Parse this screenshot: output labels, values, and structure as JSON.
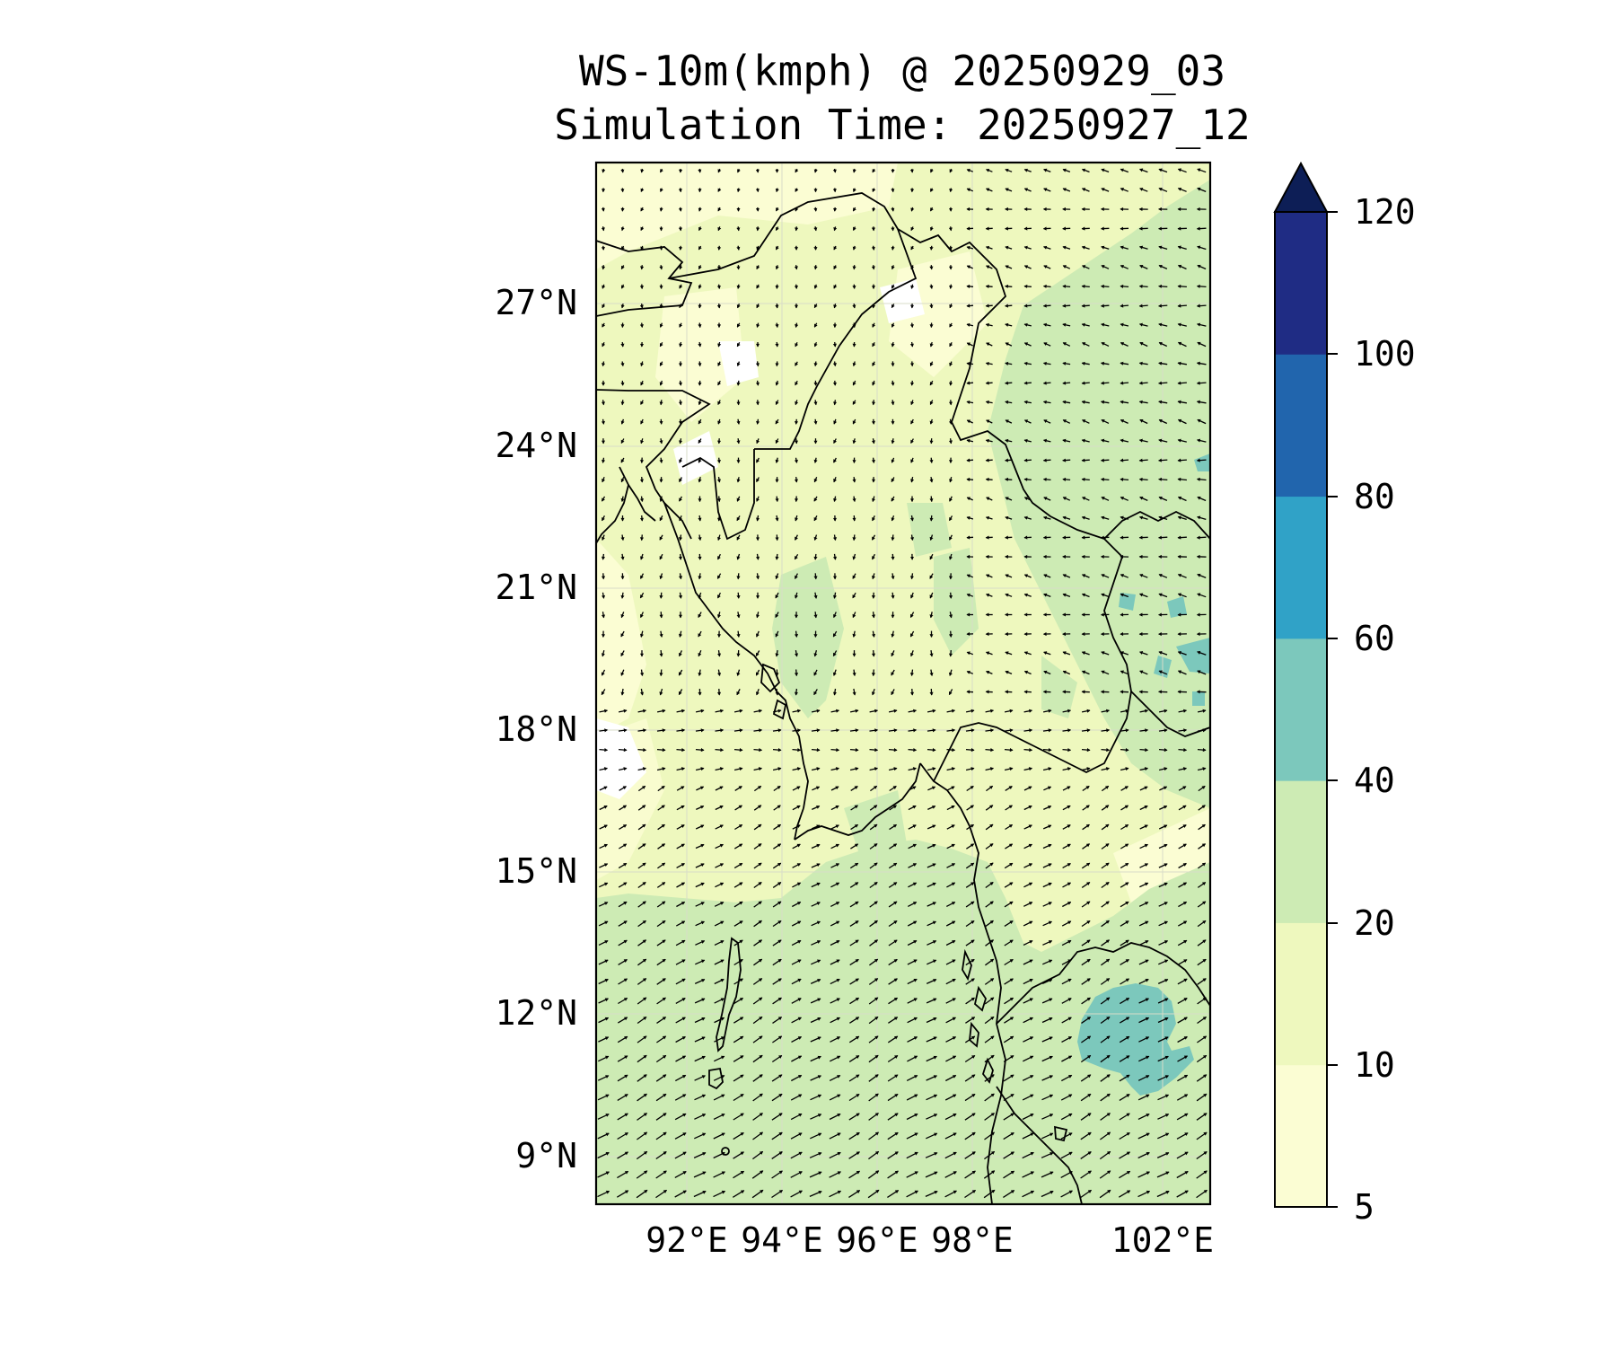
{
  "title": {
    "line1": "WS-10m(kmph) @ 20250929_03",
    "line2": "Simulation Time: 20250927_12"
  },
  "map": {
    "lat_ticks": [
      "27°N",
      "24°N",
      "21°N",
      "18°N",
      "15°N",
      "12°N",
      "9°N"
    ],
    "lon_ticks": [
      "92°E",
      "94°E",
      "96°E",
      "98°E",
      "102°E"
    ],
    "extent": {
      "lon_min": 90.2,
      "lon_max": 103.1,
      "lat_min": 8.0,
      "lat_max": 30.0
    }
  },
  "colorbar": {
    "ticks": [
      "5",
      "10",
      "20",
      "40",
      "60",
      "80",
      "100",
      "120"
    ],
    "levels": [
      5,
      10,
      20,
      40,
      60,
      80,
      100,
      120
    ],
    "colors": [
      "#fbfdd3",
      "#eef8be",
      "#cdebb4",
      "#7cc8bc",
      "#30a2c7",
      "#2165ad",
      "#1f2c84"
    ],
    "extend_color": "#0d1e56",
    "extend": "max"
  },
  "colors": {
    "land_light": "#eef8be",
    "sea_light": "#fbfdd3",
    "wind_band": "#cdebb4",
    "strong_wind": "#7cc8bc",
    "coastline": "#000000",
    "arrow": "#000000"
  }
}
